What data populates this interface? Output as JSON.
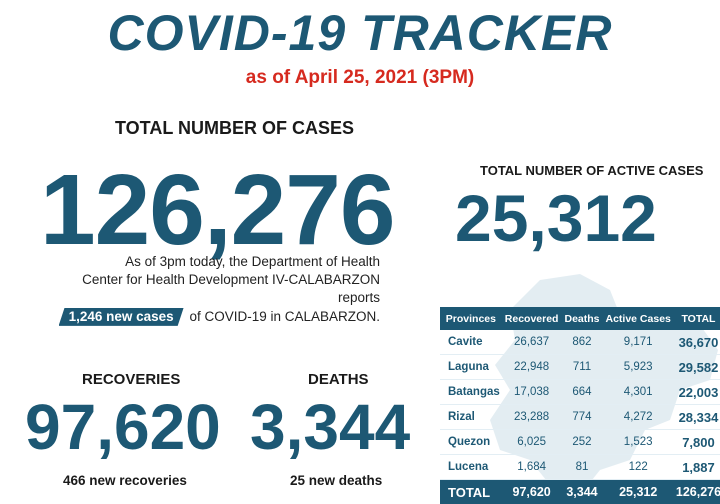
{
  "header": {
    "title": "COVID-19 TRACKER",
    "as_of": "as of April 25, 2021 (3PM)"
  },
  "total_cases": {
    "label": "TOTAL NUMBER OF CASES",
    "value": "126,276"
  },
  "active_cases": {
    "label": "TOTAL NUMBER OF ACTIVE CASES",
    "value": "25,312"
  },
  "report": {
    "line1": "As of 3pm today, the Department of Health",
    "line2": "Center for Health Development IV-CALABARZON reports",
    "highlight": "1,246 new cases",
    "line3_rest": "of COVID-19 in CALABARZON."
  },
  "recoveries": {
    "label": "RECOVERIES",
    "value": "97,620",
    "new": "466 new recoveries"
  },
  "deaths": {
    "label": "DEATHS",
    "value": "3,344",
    "new": "25 new deaths"
  },
  "table": {
    "columns": [
      "Provinces",
      "Recovered",
      "Deaths",
      "Active Cases",
      "TOTAL"
    ],
    "rows": [
      {
        "name": "Cavite",
        "recovered": "26,637",
        "deaths": "862",
        "active": "9,171",
        "total": "36,670"
      },
      {
        "name": "Laguna",
        "recovered": "22,948",
        "deaths": "711",
        "active": "5,923",
        "total": "29,582"
      },
      {
        "name": "Batangas",
        "recovered": "17,038",
        "deaths": "664",
        "active": "4,301",
        "total": "22,003"
      },
      {
        "name": "Rizal",
        "recovered": "23,288",
        "deaths": "774",
        "active": "4,272",
        "total": "28,334"
      },
      {
        "name": "Quezon",
        "recovered": "6,025",
        "deaths": "252",
        "active": "1,523",
        "total": "7,800"
      },
      {
        "name": "Lucena",
        "recovered": "1,684",
        "deaths": "81",
        "active": "122",
        "total": "1,887"
      }
    ],
    "footer": {
      "name": "TOTAL",
      "recovered": "97,620",
      "deaths": "3,344",
      "active": "25,312",
      "total": "126,276"
    }
  },
  "colors": {
    "primary": "#1d5874",
    "accent_red": "#d62a1f"
  }
}
